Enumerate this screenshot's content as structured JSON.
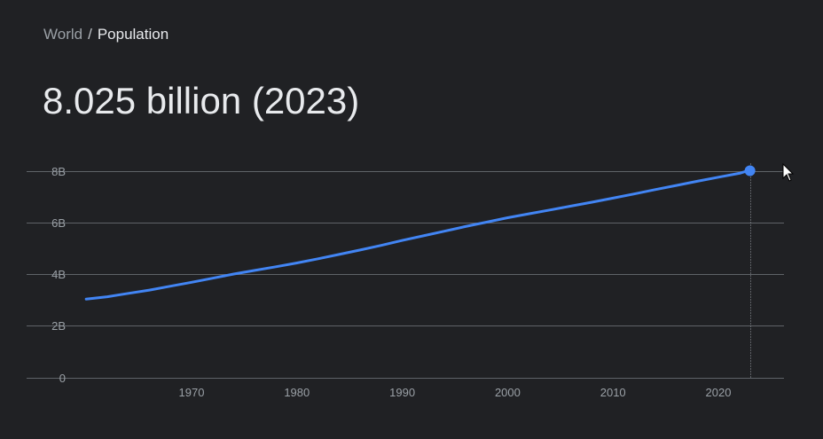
{
  "breadcrumb": {
    "parent": "World",
    "separator": "/",
    "current": "Population"
  },
  "headline": "8.025 billion (2023)",
  "colors": {
    "background": "#202124",
    "line": "#4285f4",
    "grid": "#5f6368",
    "tick_text": "#9aa0a6"
  },
  "chart_data": {
    "type": "line",
    "title": "",
    "xlabel": "",
    "ylabel": "",
    "grid": true,
    "xlim": [
      1955,
      2026
    ],
    "ylim": [
      0,
      8000000000
    ],
    "x_ticks": [
      1970,
      1980,
      1990,
      2000,
      2010,
      2020
    ],
    "x_tick_labels": [
      "1970",
      "1980",
      "1990",
      "2000",
      "2010",
      "2020"
    ],
    "y_ticks": [
      0,
      2000000000,
      4000000000,
      6000000000,
      8000000000
    ],
    "y_tick_labels": [
      "0",
      "2B",
      "4B",
      "6B",
      "8B"
    ],
    "series": [
      {
        "x": [
          1960,
          1962,
          1964,
          1966,
          1968,
          1970,
          1972,
          1974,
          1976,
          1978,
          1980,
          1982,
          1984,
          1986,
          1988,
          1990,
          1992,
          1994,
          1996,
          1998,
          2000,
          2002,
          2004,
          2006,
          2008,
          2010,
          2012,
          2014,
          2016,
          2018,
          2020,
          2022,
          2023
        ],
        "y": [
          3030000000,
          3120000000,
          3250000000,
          3380000000,
          3530000000,
          3680000000,
          3840000000,
          4000000000,
          4140000000,
          4280000000,
          4430000000,
          4590000000,
          4760000000,
          4930000000,
          5110000000,
          5300000000,
          5480000000,
          5660000000,
          5840000000,
          6010000000,
          6180000000,
          6330000000,
          6480000000,
          6630000000,
          6780000000,
          6940000000,
          7100000000,
          7270000000,
          7430000000,
          7590000000,
          7750000000,
          7900000000,
          8025000000
        ]
      }
    ],
    "highlight": {
      "x": 2023,
      "y": 8025000000
    }
  }
}
